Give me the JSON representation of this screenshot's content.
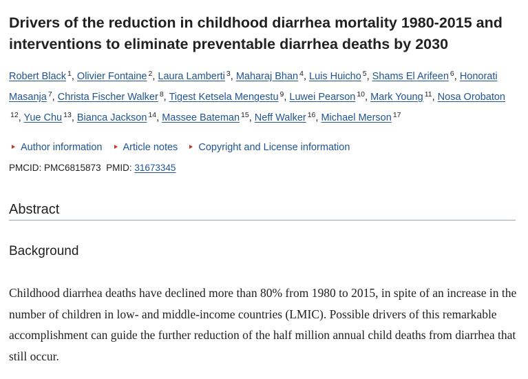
{
  "article": {
    "title": "Drivers of the reduction in childhood diarrhea mortality 1980-2015 and interventions to eliminate preventable diarrhea deaths by 2030",
    "authors": [
      {
        "name": "Robert Black",
        "sup": "1"
      },
      {
        "name": "Olivier Fontaine",
        "sup": "2"
      },
      {
        "name": "Laura Lamberti",
        "sup": "3"
      },
      {
        "name": "Maharaj Bhan",
        "sup": "4"
      },
      {
        "name": "Luis Huicho",
        "sup": "5"
      },
      {
        "name": "Shams El Arifeen",
        "sup": "6"
      },
      {
        "name": "Honorati Masanja",
        "sup": "7"
      },
      {
        "name": "Christa Fischer Walker",
        "sup": "8"
      },
      {
        "name": "Tigest Ketsela Mengestu",
        "sup": "9"
      },
      {
        "name": "Luwei Pearson",
        "sup": "10"
      },
      {
        "name": "Mark Young",
        "sup": "11"
      },
      {
        "name": "Nosa Orobaton",
        "sup": "12"
      },
      {
        "name": "Yue Chu",
        "sup": "13"
      },
      {
        "name": "Bianca Jackson",
        "sup": "14"
      },
      {
        "name": "Massee Bateman",
        "sup": "15"
      },
      {
        "name": "Neff Walker",
        "sup": "16"
      },
      {
        "name": "Michael Merson",
        "sup": "17"
      }
    ],
    "info_links": {
      "author_information": "Author information",
      "article_notes": "Article notes",
      "copyright": "Copyright and License information"
    },
    "ids": {
      "pmcid_label": "PMCID:",
      "pmcid": "PMC6815873",
      "pmid_label": "PMID:",
      "pmid": "31673345"
    },
    "abstract": {
      "heading": "Abstract",
      "background_heading": "Background",
      "background_text": "Childhood diarrhea deaths have declined more than 80% from 1980 to 2015, in spite of an increase in the number of children in low- and middle-income countries (LMIC). Possible drivers of this remarkable accomplishment can guide the further reduction of the half million annual child deaths from diarrhea that still occur."
    }
  },
  "colors": {
    "link": "#205493",
    "text": "#212121",
    "triangle": "#c0392b",
    "rule": "#97a3b1"
  }
}
